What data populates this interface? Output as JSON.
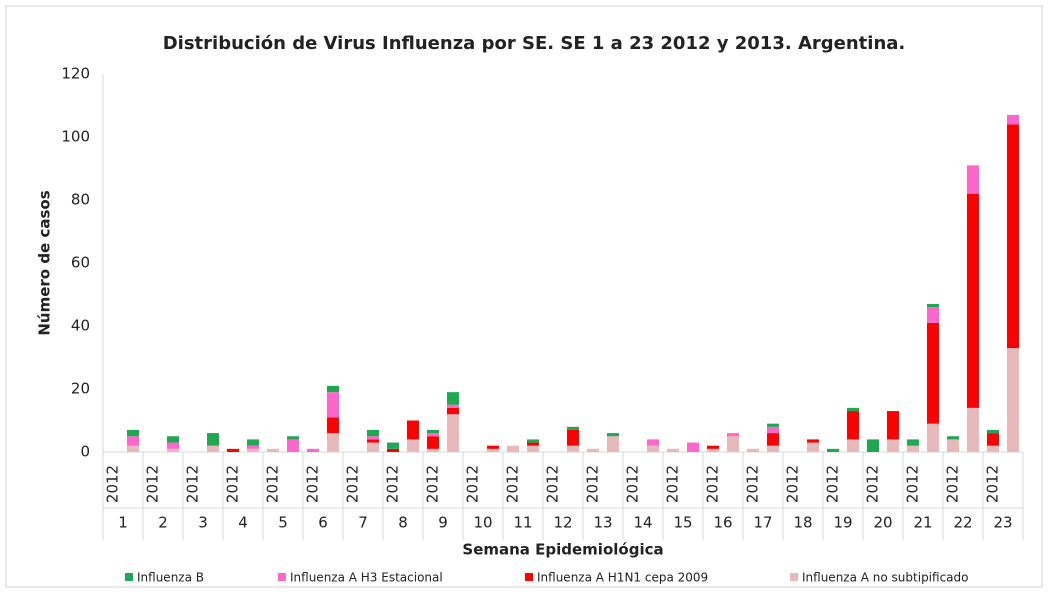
{
  "chart_data": {
    "type": "stacked_bar",
    "title": "Distribución de Virus Influenza por SE. SE 1 a 23 2012 y 2013. Argentina.",
    "y_label": "Número de casos",
    "x_label": "Semana Epidemiológica",
    "categories": [
      "2012",
      null,
      "2012",
      null,
      "2012",
      null,
      "2012",
      null,
      "2012",
      null,
      "2012",
      null,
      "2012",
      null,
      "2012",
      null,
      "2012",
      null,
      "2012",
      null,
      "2012",
      null,
      "2012",
      null,
      "2012",
      null,
      "2012",
      null,
      "2012",
      null,
      "2012",
      null,
      "2012",
      null,
      "2012",
      null,
      "2012",
      null,
      "2012",
      null,
      "2012",
      null,
      "2012",
      null,
      "2012",
      null
    ],
    "groups": [
      "1",
      "2",
      "3",
      "4",
      "5",
      "6",
      "7",
      "8",
      "9",
      "10",
      "11",
      "12",
      "13",
      "14",
      "15",
      "16",
      "17",
      "18",
      "19",
      "20",
      "21",
      "22",
      "23"
    ],
    "series": [
      {
        "name": "Influenza B",
        "color": "#1ea851",
        "values": [
          0,
          2,
          0,
          2,
          0,
          4,
          0,
          2,
          0,
          1,
          0,
          2,
          0,
          2,
          2,
          0,
          1,
          4,
          0,
          0,
          0,
          1,
          0,
          1,
          0,
          1,
          0,
          0,
          0,
          0,
          0,
          0,
          0,
          1,
          0,
          0,
          1,
          1,
          4,
          0,
          2,
          1,
          1,
          0,
          1,
          0
        ]
      },
      {
        "name": "Influenza A H3 Estacional",
        "color": "#ff66cc",
        "values": [
          0,
          3,
          0,
          2,
          0,
          0,
          0,
          1,
          0,
          4,
          1,
          8,
          0,
          1,
          0,
          0,
          1,
          1,
          0,
          0,
          0,
          0,
          0,
          0,
          0,
          0,
          0,
          2,
          0,
          3,
          0,
          1,
          0,
          2,
          0,
          0,
          0,
          0,
          0,
          0,
          0,
          5,
          0,
          9,
          0,
          3
        ]
      },
      {
        "name": "Influenza A H1N1 cepa 2009",
        "color": "#ff0000",
        "values": [
          0,
          0,
          0,
          0,
          0,
          0,
          1,
          0,
          0,
          0,
          0,
          5,
          0,
          1,
          1,
          6,
          4,
          2,
          0,
          1,
          0,
          1,
          0,
          5,
          0,
          0,
          0,
          0,
          0,
          0,
          1,
          0,
          0,
          4,
          0,
          1,
          0,
          9,
          0,
          9,
          0,
          32,
          0,
          68,
          4,
          71
        ]
      },
      {
        "name": "Influenza A no subtipificado",
        "color": "#e8b9bb",
        "values": [
          0,
          2,
          0,
          1,
          0,
          2,
          0,
          1,
          1,
          0,
          0,
          6,
          0,
          3,
          0,
          4,
          1,
          12,
          0,
          1,
          2,
          2,
          0,
          2,
          1,
          5,
          0,
          2,
          1,
          0,
          1,
          5,
          1,
          2,
          0,
          3,
          0,
          4,
          0,
          4,
          2,
          9,
          4,
          14,
          2,
          33
        ]
      }
    ],
    "ylim": [
      0,
      120
    ],
    "yticks": [
      0,
      20,
      40,
      60,
      80,
      100,
      120
    ]
  }
}
